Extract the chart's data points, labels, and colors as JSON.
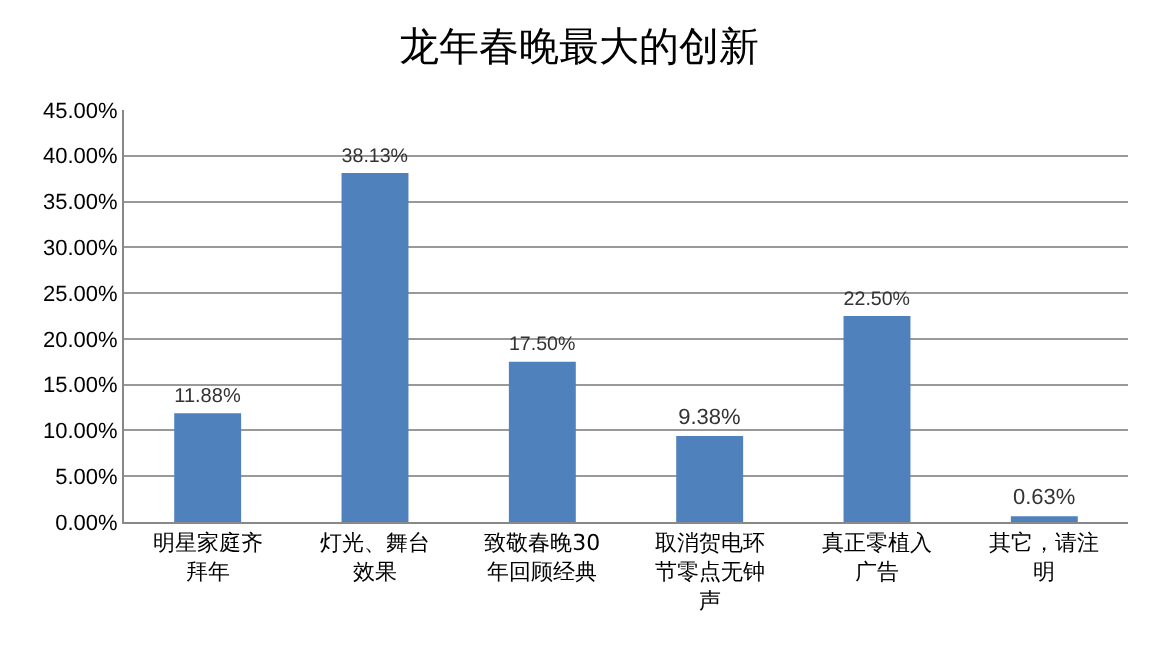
{
  "chart_data": {
    "type": "bar",
    "title": "龙年春晚最大的创新",
    "categories": [
      "明星家庭齐拜年",
      "灯光、舞台效果",
      "致敬春晚30年回顾经典",
      "取消贺电环节零点无钟声",
      "真正零植入广告",
      "其它，请注明"
    ],
    "values": [
      11.88,
      38.13,
      17.5,
      9.38,
      22.5,
      0.63
    ],
    "value_labels": [
      "11.88%",
      "38.13%",
      "17.50%",
      "9.38%",
      "22.50%",
      "0.63%"
    ],
    "color": "#4f81bd",
    "ylim": [
      0,
      45
    ],
    "yticks": [
      {
        "value": 0,
        "label": "0.00%"
      },
      {
        "value": 5,
        "label": "5.00%"
      },
      {
        "value": 10,
        "label": "10.00%"
      },
      {
        "value": 15,
        "label": "15.00%"
      },
      {
        "value": 20,
        "label": "20.00%"
      },
      {
        "value": 25,
        "label": "25.00%"
      },
      {
        "value": 30,
        "label": "30.00%"
      },
      {
        "value": 35,
        "label": "35.00%"
      },
      {
        "value": 40,
        "label": "40.00%"
      },
      {
        "value": 45,
        "label": "45.00%"
      }
    ],
    "grid": "y"
  }
}
